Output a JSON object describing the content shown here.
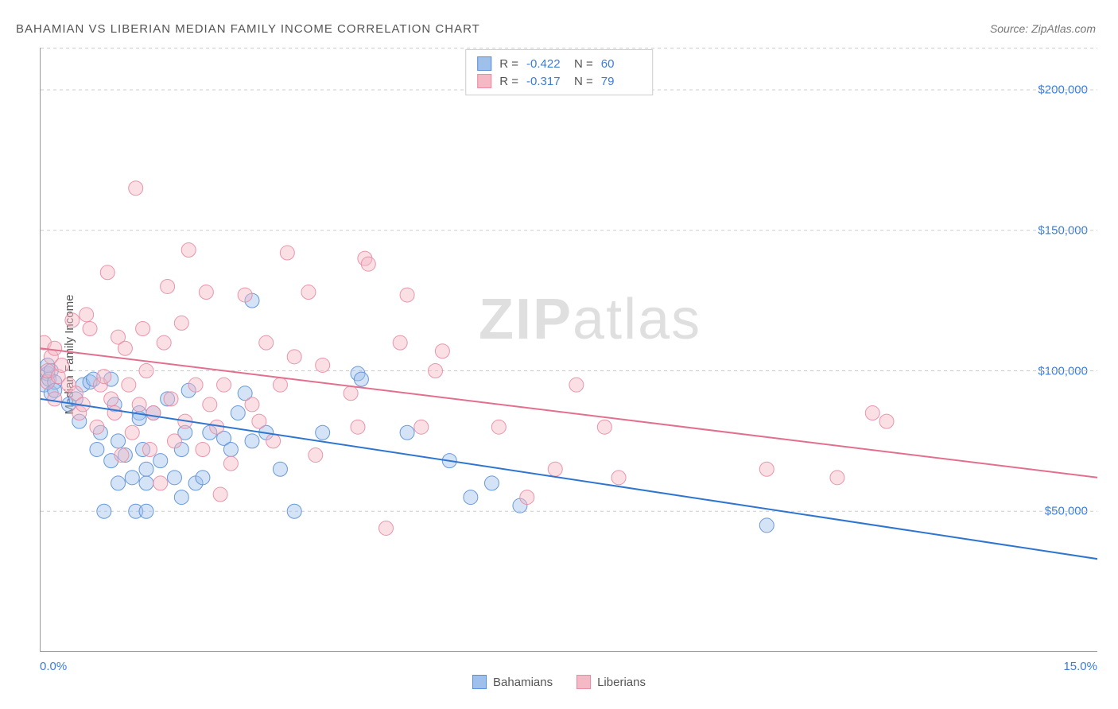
{
  "title": "BAHAMIAN VS LIBERIAN MEDIAN FAMILY INCOME CORRELATION CHART",
  "source_label": "Source:",
  "source_value": "ZipAtlas.com",
  "y_axis_label": "Median Family Income",
  "watermark_bold": "ZIP",
  "watermark_light": "atlas",
  "chart": {
    "type": "scatter",
    "background_color": "#ffffff",
    "grid_color": "#cccccc",
    "axis_color": "#999999",
    "tick_label_color": "#3b7dd8",
    "xlim": [
      0,
      15
    ],
    "ylim": [
      0,
      215000
    ],
    "x_ticks": [
      0.0,
      1.875,
      3.75,
      5.625,
      7.5,
      9.375,
      11.25,
      13.125,
      15.0
    ],
    "x_tick_labels_shown": {
      "left": "0.0%",
      "right": "15.0%"
    },
    "y_gridlines": [
      50000,
      100000,
      150000,
      200000
    ],
    "y_tick_labels": [
      "$50,000",
      "$100,000",
      "$150,000",
      "$200,000"
    ],
    "marker_radius": 9,
    "marker_opacity": 0.45,
    "marker_stroke_opacity": 0.9,
    "line_width": 2,
    "series": [
      {
        "name": "Bahamians",
        "color_fill": "#9fc0ea",
        "color_stroke": "#5a8fd6",
        "line_color": "#2e75d0",
        "R": "-0.422",
        "N": "60",
        "trend": {
          "x1": 0,
          "y1": 90000,
          "x2": 15,
          "y2": 33000
        },
        "points": [
          [
            0.05,
            95000
          ],
          [
            0.1,
            99000
          ],
          [
            0.1,
            102000
          ],
          [
            0.12,
            97000
          ],
          [
            0.15,
            92000
          ],
          [
            0.15,
            100000
          ],
          [
            0.2,
            96000
          ],
          [
            0.2,
            93000
          ],
          [
            0.4,
            88000
          ],
          [
            0.5,
            90000
          ],
          [
            0.55,
            82000
          ],
          [
            0.6,
            95000
          ],
          [
            0.7,
            96000
          ],
          [
            0.75,
            97000
          ],
          [
            0.8,
            72000
          ],
          [
            0.85,
            78000
          ],
          [
            0.9,
            50000
          ],
          [
            1.0,
            97000
          ],
          [
            1.0,
            68000
          ],
          [
            1.05,
            88000
          ],
          [
            1.1,
            60000
          ],
          [
            1.1,
            75000
          ],
          [
            1.2,
            70000
          ],
          [
            1.3,
            62000
          ],
          [
            1.35,
            50000
          ],
          [
            1.4,
            85000
          ],
          [
            1.4,
            83000
          ],
          [
            1.45,
            72000
          ],
          [
            1.5,
            60000
          ],
          [
            1.5,
            65000
          ],
          [
            1.5,
            50000
          ],
          [
            1.6,
            85000
          ],
          [
            1.7,
            68000
          ],
          [
            1.8,
            90000
          ],
          [
            1.9,
            62000
          ],
          [
            2.0,
            72000
          ],
          [
            2.05,
            78000
          ],
          [
            2.0,
            55000
          ],
          [
            2.1,
            93000
          ],
          [
            2.2,
            60000
          ],
          [
            2.3,
            62000
          ],
          [
            2.4,
            78000
          ],
          [
            2.6,
            76000
          ],
          [
            2.7,
            72000
          ],
          [
            2.8,
            85000
          ],
          [
            2.9,
            92000
          ],
          [
            3.0,
            125000
          ],
          [
            3.0,
            75000
          ],
          [
            3.2,
            78000
          ],
          [
            3.4,
            65000
          ],
          [
            3.6,
            50000
          ],
          [
            4.0,
            78000
          ],
          [
            4.5,
            99000
          ],
          [
            4.55,
            97000
          ],
          [
            5.2,
            78000
          ],
          [
            5.8,
            68000
          ],
          [
            6.1,
            55000
          ],
          [
            6.4,
            60000
          ],
          [
            6.8,
            52000
          ],
          [
            10.3,
            45000
          ]
        ]
      },
      {
        "name": "Liberians",
        "color_fill": "#f5b8c5",
        "color_stroke": "#e88ba3",
        "line_color": "#e36f8f",
        "R": "-0.317",
        "N": "79",
        "trend": {
          "x1": 0,
          "y1": 108000,
          "x2": 15,
          "y2": 62000
        },
        "points": [
          [
            0.05,
            110000
          ],
          [
            0.1,
            96000
          ],
          [
            0.1,
            100000
          ],
          [
            0.15,
            105000
          ],
          [
            0.2,
            108000
          ],
          [
            0.2,
            90000
          ],
          [
            0.25,
            98000
          ],
          [
            0.3,
            102000
          ],
          [
            0.4,
            95000
          ],
          [
            0.45,
            118000
          ],
          [
            0.5,
            92000
          ],
          [
            0.55,
            85000
          ],
          [
            0.6,
            88000
          ],
          [
            0.65,
            120000
          ],
          [
            0.7,
            115000
          ],
          [
            0.8,
            80000
          ],
          [
            0.85,
            95000
          ],
          [
            0.9,
            98000
          ],
          [
            0.95,
            135000
          ],
          [
            1.0,
            90000
          ],
          [
            1.05,
            85000
          ],
          [
            1.1,
            112000
          ],
          [
            1.15,
            70000
          ],
          [
            1.2,
            108000
          ],
          [
            1.25,
            95000
          ],
          [
            1.3,
            78000
          ],
          [
            1.35,
            165000
          ],
          [
            1.4,
            88000
          ],
          [
            1.45,
            115000
          ],
          [
            1.5,
            100000
          ],
          [
            1.55,
            72000
          ],
          [
            1.6,
            85000
          ],
          [
            1.7,
            60000
          ],
          [
            1.75,
            110000
          ],
          [
            1.8,
            130000
          ],
          [
            1.85,
            90000
          ],
          [
            1.9,
            75000
          ],
          [
            2.0,
            117000
          ],
          [
            2.05,
            82000
          ],
          [
            2.1,
            143000
          ],
          [
            2.2,
            95000
          ],
          [
            2.3,
            72000
          ],
          [
            2.35,
            128000
          ],
          [
            2.4,
            88000
          ],
          [
            2.5,
            80000
          ],
          [
            2.55,
            56000
          ],
          [
            2.6,
            95000
          ],
          [
            2.7,
            67000
          ],
          [
            2.9,
            127000
          ],
          [
            3.0,
            88000
          ],
          [
            3.1,
            82000
          ],
          [
            3.2,
            110000
          ],
          [
            3.3,
            75000
          ],
          [
            3.4,
            95000
          ],
          [
            3.5,
            142000
          ],
          [
            3.6,
            105000
          ],
          [
            3.8,
            128000
          ],
          [
            3.9,
            70000
          ],
          [
            4.0,
            102000
          ],
          [
            4.4,
            92000
          ],
          [
            4.5,
            80000
          ],
          [
            4.6,
            140000
          ],
          [
            4.65,
            138000
          ],
          [
            4.9,
            44000
          ],
          [
            5.1,
            110000
          ],
          [
            5.2,
            127000
          ],
          [
            5.4,
            80000
          ],
          [
            5.6,
            100000
          ],
          [
            5.7,
            107000
          ],
          [
            6.5,
            80000
          ],
          [
            6.9,
            55000
          ],
          [
            7.3,
            65000
          ],
          [
            7.6,
            95000
          ],
          [
            8.0,
            80000
          ],
          [
            8.2,
            62000
          ],
          [
            10.3,
            65000
          ],
          [
            11.3,
            62000
          ],
          [
            11.8,
            85000
          ],
          [
            12.0,
            82000
          ]
        ]
      }
    ]
  },
  "bottom_legend": [
    {
      "label": "Bahamians",
      "fill": "#9fc0ea",
      "stroke": "#5a8fd6"
    },
    {
      "label": "Liberians",
      "fill": "#f5b8c5",
      "stroke": "#e88ba3"
    }
  ],
  "stats_labels": {
    "R": "R =",
    "N": "N ="
  }
}
